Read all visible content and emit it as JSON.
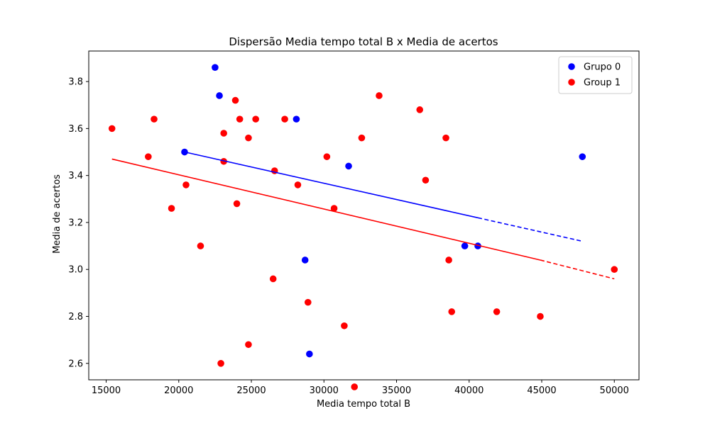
{
  "chart_data": {
    "type": "scatter",
    "title": "Dispersão Media tempo total B x Media de acertos",
    "xlabel": "Media tempo total B",
    "ylabel": "Media de acertos",
    "xlim": [
      13800,
      51700
    ],
    "ylim": [
      2.53,
      3.93
    ],
    "x_ticks": [
      15000,
      20000,
      25000,
      30000,
      35000,
      40000,
      45000,
      50000
    ],
    "x_tick_labels": [
      "15000",
      "20000",
      "25000",
      "30000",
      "35000",
      "40000",
      "45000",
      "50000"
    ],
    "y_ticks": [
      2.6,
      2.8,
      3.0,
      3.2,
      3.4,
      3.6,
      3.8
    ],
    "y_tick_labels": [
      "2.6",
      "2.8",
      "3.0",
      "3.2",
      "3.4",
      "3.6",
      "3.8"
    ],
    "grid": false,
    "legend_position": "top-right",
    "series": [
      {
        "name": "Grupo 0",
        "color": "#0000ff",
        "points": [
          [
            22500,
            3.86
          ],
          [
            22800,
            3.74
          ],
          [
            20400,
            3.5
          ],
          [
            28100,
            3.64
          ],
          [
            31700,
            3.44
          ],
          [
            28700,
            3.04
          ],
          [
            29000,
            2.64
          ],
          [
            39700,
            3.1
          ],
          [
            40600,
            3.1
          ],
          [
            47800,
            3.48
          ]
        ],
        "trend": {
          "solid": [
            [
              20400,
              3.5
            ],
            [
              40600,
              3.22
            ]
          ],
          "dashed": [
            [
              40600,
              3.22
            ],
            [
              47800,
              3.12
            ]
          ]
        }
      },
      {
        "name": "Group 1",
        "color": "#ff0000",
        "points": [
          [
            15400,
            3.6
          ],
          [
            18300,
            3.64
          ],
          [
            17900,
            3.48
          ],
          [
            19500,
            3.26
          ],
          [
            20500,
            3.36
          ],
          [
            21500,
            3.1
          ],
          [
            22900,
            2.6
          ],
          [
            23100,
            3.58
          ],
          [
            23100,
            3.46
          ],
          [
            23900,
            3.72
          ],
          [
            24000,
            3.28
          ],
          [
            24200,
            3.64
          ],
          [
            24800,
            3.56
          ],
          [
            24800,
            2.68
          ],
          [
            25300,
            3.64
          ],
          [
            26500,
            2.96
          ],
          [
            26600,
            3.42
          ],
          [
            27300,
            3.64
          ],
          [
            28200,
            3.36
          ],
          [
            28900,
            2.86
          ],
          [
            30200,
            3.48
          ],
          [
            30700,
            3.26
          ],
          [
            31400,
            2.76
          ],
          [
            32100,
            2.5
          ],
          [
            32600,
            3.56
          ],
          [
            33800,
            3.74
          ],
          [
            36600,
            3.68
          ],
          [
            37000,
            3.38
          ],
          [
            38400,
            3.56
          ],
          [
            38600,
            3.04
          ],
          [
            38800,
            2.82
          ],
          [
            41900,
            2.82
          ],
          [
            44900,
            2.8
          ],
          [
            50000,
            3.0
          ]
        ],
        "trend": {
          "solid": [
            [
              15400,
              3.47
            ],
            [
              44900,
              3.04
            ]
          ],
          "dashed": [
            [
              44900,
              3.04
            ],
            [
              50000,
              2.96
            ]
          ]
        }
      }
    ]
  }
}
